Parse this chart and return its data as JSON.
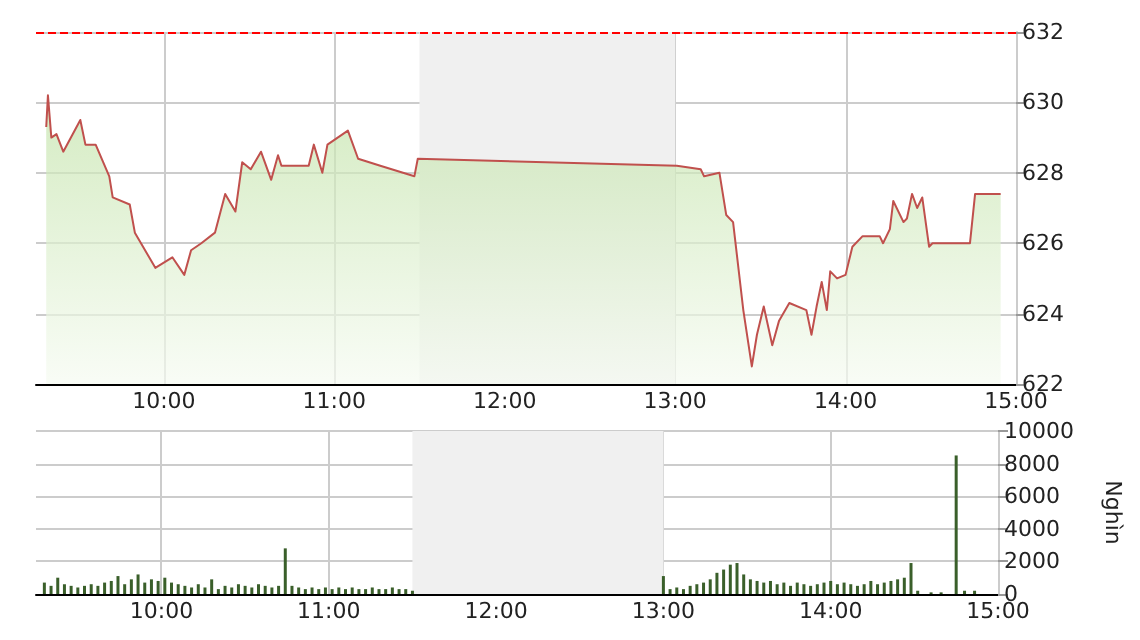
{
  "chart_data": [
    {
      "type": "area",
      "marker": "none",
      "grid": true,
      "x": [
        9.31,
        9.32,
        9.34,
        9.37,
        9.41,
        9.51,
        9.54,
        9.6,
        9.68,
        9.7,
        9.8,
        9.83,
        9.95,
        10.05,
        10.12,
        10.16,
        10.22,
        10.3,
        10.36,
        10.42,
        10.46,
        10.51,
        10.57,
        10.63,
        10.67,
        10.69,
        10.85,
        10.88,
        10.93,
        10.96,
        11.08,
        11.14,
        11.27,
        11.47,
        11.49,
        13.01,
        13.15,
        13.17,
        13.26,
        13.3,
        13.34,
        13.4,
        13.45,
        13.48,
        13.52,
        13.57,
        13.61,
        13.67,
        13.77,
        13.8,
        13.83,
        13.86,
        13.89,
        13.91,
        13.95,
        14.0,
        14.04,
        14.1,
        14.2,
        14.22,
        14.26,
        14.28,
        14.34,
        14.36,
        14.39,
        14.42,
        14.45,
        14.49,
        14.51,
        14.73,
        14.76,
        14.91
      ],
      "series": [
        {
          "color": "#c0504d",
          "values": [
            629.3,
            630.2,
            629.0,
            629.1,
            628.6,
            629.5,
            628.8,
            628.8,
            627.9,
            627.3,
            627.1,
            626.3,
            625.3,
            625.6,
            625.1,
            625.8,
            626.0,
            626.3,
            627.4,
            626.9,
            628.3,
            628.1,
            628.6,
            627.8,
            628.5,
            628.2,
            628.2,
            628.8,
            628.0,
            628.8,
            629.2,
            628.4,
            628.2,
            627.9,
            628.4,
            628.2,
            628.1,
            627.9,
            628.0,
            626.8,
            626.6,
            624.1,
            622.5,
            623.4,
            624.2,
            623.1,
            623.8,
            624.3,
            624.1,
            623.4,
            624.2,
            624.9,
            624.1,
            625.2,
            625.0,
            625.1,
            625.9,
            626.2,
            626.2,
            626.0,
            626.4,
            627.2,
            626.6,
            626.7,
            627.4,
            627.0,
            627.3,
            625.9,
            626.0,
            626.0,
            627.4,
            627.4
          ]
        }
      ],
      "xlim": [
        9.25,
        15
      ],
      "xticks": [
        {
          "value": 10,
          "label": "10:00"
        },
        {
          "value": 11,
          "label": "11:00"
        },
        {
          "value": 12,
          "label": "12:00"
        },
        {
          "value": 13,
          "label": "13:00"
        },
        {
          "value": 14,
          "label": "14:00"
        },
        {
          "value": 15,
          "label": "15:00"
        }
      ],
      "ylim": [
        622,
        632
      ],
      "yticks": [
        622,
        624,
        626,
        628,
        630,
        632
      ],
      "ref_lines": [
        {
          "axis": "y",
          "value": 632,
          "color": "#ff0000",
          "line_style": "dashed"
        }
      ],
      "bands": [
        {
          "axis": "x",
          "from": 11.5,
          "to": 13,
          "color": "#f0f0f0"
        }
      ]
    },
    {
      "type": "bar",
      "grid": true,
      "ylabel": "Nghìn",
      "x": [
        9.3,
        9.34,
        9.38,
        9.42,
        9.46,
        9.5,
        9.54,
        9.58,
        9.62,
        9.66,
        9.7,
        9.74,
        9.78,
        9.82,
        9.86,
        9.9,
        9.94,
        9.98,
        10.02,
        10.06,
        10.1,
        10.14,
        10.18,
        10.22,
        10.26,
        10.3,
        10.34,
        10.38,
        10.42,
        10.46,
        10.5,
        10.54,
        10.58,
        10.62,
        10.66,
        10.7,
        10.74,
        10.78,
        10.82,
        10.86,
        10.9,
        10.94,
        10.98,
        11.02,
        11.06,
        11.1,
        11.14,
        11.18,
        11.22,
        11.26,
        11.3,
        11.34,
        11.38,
        11.42,
        11.46,
        11.5,
        13.0,
        13.04,
        13.08,
        13.12,
        13.16,
        13.2,
        13.24,
        13.28,
        13.32,
        13.36,
        13.4,
        13.44,
        13.48,
        13.52,
        13.56,
        13.6,
        13.64,
        13.68,
        13.72,
        13.76,
        13.8,
        13.84,
        13.88,
        13.92,
        13.96,
        14.0,
        14.04,
        14.08,
        14.12,
        14.16,
        14.2,
        14.24,
        14.28,
        14.32,
        14.36,
        14.4,
        14.44,
        14.48,
        14.52,
        14.6,
        14.66,
        14.75,
        14.8,
        14.86
      ],
      "series": [
        {
          "color": "#3a5f2a",
          "values": [
            700,
            500,
            1000,
            600,
            500,
            400,
            500,
            600,
            500,
            700,
            800,
            1100,
            600,
            900,
            1200,
            700,
            900,
            800,
            1000,
            700,
            600,
            500,
            400,
            600,
            400,
            900,
            300,
            500,
            400,
            600,
            500,
            400,
            600,
            500,
            400,
            500,
            2800,
            500,
            400,
            300,
            400,
            300,
            400,
            300,
            400,
            300,
            400,
            300,
            300,
            400,
            300,
            300,
            400,
            300,
            300,
            200,
            1100,
            300,
            400,
            300,
            500,
            600,
            700,
            900,
            1300,
            1500,
            1800,
            1900,
            1200,
            900,
            800,
            700,
            800,
            600,
            700,
            500,
            700,
            600,
            500,
            600,
            700,
            800,
            600,
            700,
            600,
            500,
            600,
            800,
            600,
            700,
            800,
            900,
            1000,
            1900,
            200,
            100,
            100,
            8500,
            200,
            200
          ]
        }
      ],
      "xlim": [
        9.25,
        15
      ],
      "xticks": [
        {
          "value": 10,
          "label": "10:00"
        },
        {
          "value": 11,
          "label": "11:00"
        },
        {
          "value": 12,
          "label": "12:00"
        },
        {
          "value": 13,
          "label": "13:00"
        },
        {
          "value": 14,
          "label": "14:00"
        },
        {
          "value": 15,
          "label": "15:00"
        }
      ],
      "ylim": [
        0,
        10000
      ],
      "yticks": [
        0,
        2000,
        4000,
        6000,
        8000,
        10000
      ],
      "bands": [
        {
          "axis": "x",
          "from": 11.5,
          "to": 13,
          "color": "#f0f0f0"
        }
      ]
    }
  ]
}
